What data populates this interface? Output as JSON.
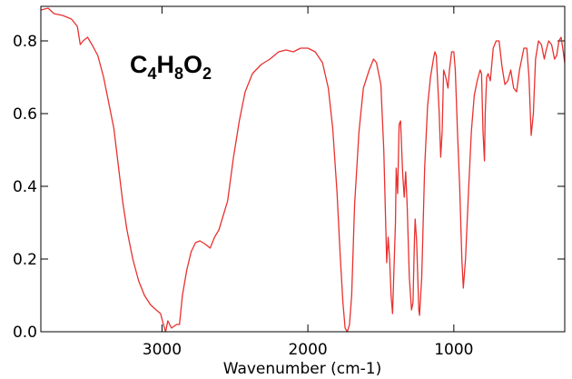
{
  "chart_data": {
    "type": "line",
    "xlabel": "Wavenumber (cm-1)",
    "annotation": [
      "C",
      "4",
      "H",
      "8",
      "O",
      "2"
    ],
    "xlim": [
      3830,
      240
    ],
    "xticks": [
      3000,
      2000,
      1000
    ],
    "ylim": [
      0,
      0.895
    ],
    "yticks": [
      {
        "value": 0,
        "label": "0.0"
      },
      0.2,
      0.4,
      0.6,
      0.8
    ],
    "x": [
      3830,
      3780,
      3740,
      3680,
      3620,
      3580,
      3560,
      3540,
      3510,
      3480,
      3440,
      3400,
      3360,
      3330,
      3300,
      3270,
      3240,
      3200,
      3160,
      3120,
      3080,
      3040,
      3010,
      2990,
      2975,
      2960,
      2935,
      2900,
      2880,
      2860,
      2830,
      2800,
      2770,
      2740,
      2700,
      2670,
      2640,
      2610,
      2580,
      2550,
      2510,
      2470,
      2430,
      2380,
      2320,
      2260,
      2200,
      2150,
      2100,
      2050,
      2000,
      1950,
      1900,
      1860,
      1830,
      1800,
      1780,
      1760,
      1745,
      1730,
      1715,
      1700,
      1680,
      1650,
      1620,
      1580,
      1550,
      1530,
      1500,
      1480,
      1460,
      1450,
      1440,
      1430,
      1420,
      1400,
      1395,
      1385,
      1375,
      1365,
      1350,
      1340,
      1330,
      1320,
      1305,
      1290,
      1280,
      1270,
      1265,
      1255,
      1240,
      1235,
      1220,
      1200,
      1180,
      1160,
      1140,
      1130,
      1120,
      1100,
      1090,
      1080,
      1070,
      1055,
      1040,
      1030,
      1015,
      1000,
      990,
      975,
      960,
      945,
      935,
      920,
      900,
      880,
      860,
      840,
      820,
      810,
      800,
      790,
      785,
      775,
      765,
      750,
      730,
      710,
      690,
      670,
      650,
      630,
      610,
      590,
      570,
      550,
      520,
      500,
      485,
      470,
      455,
      440,
      420,
      400,
      380,
      370,
      350,
      330,
      310,
      295,
      280,
      265,
      250,
      240
    ],
    "series": [
      {
        "color": "#e8312f",
        "values": [
          0.885,
          0.89,
          0.875,
          0.87,
          0.86,
          0.84,
          0.79,
          0.8,
          0.81,
          0.79,
          0.76,
          0.7,
          0.62,
          0.56,
          0.46,
          0.36,
          0.28,
          0.2,
          0.14,
          0.1,
          0.075,
          0.06,
          0.05,
          0.02,
          0.0,
          0.03,
          0.01,
          0.02,
          0.02,
          0.1,
          0.17,
          0.22,
          0.245,
          0.25,
          0.24,
          0.23,
          0.26,
          0.28,
          0.32,
          0.36,
          0.48,
          0.58,
          0.66,
          0.71,
          0.735,
          0.75,
          0.77,
          0.775,
          0.77,
          0.78,
          0.78,
          0.77,
          0.74,
          0.67,
          0.56,
          0.38,
          0.22,
          0.08,
          0.01,
          0.0,
          0.02,
          0.1,
          0.35,
          0.55,
          0.67,
          0.72,
          0.75,
          0.74,
          0.68,
          0.5,
          0.19,
          0.26,
          0.2,
          0.1,
          0.05,
          0.3,
          0.45,
          0.38,
          0.57,
          0.58,
          0.43,
          0.37,
          0.44,
          0.35,
          0.15,
          0.06,
          0.08,
          0.25,
          0.31,
          0.25,
          0.06,
          0.045,
          0.15,
          0.45,
          0.62,
          0.7,
          0.75,
          0.77,
          0.76,
          0.6,
          0.48,
          0.55,
          0.72,
          0.7,
          0.67,
          0.72,
          0.77,
          0.77,
          0.72,
          0.55,
          0.4,
          0.2,
          0.12,
          0.2,
          0.38,
          0.55,
          0.65,
          0.69,
          0.72,
          0.71,
          0.55,
          0.47,
          0.6,
          0.7,
          0.71,
          0.69,
          0.78,
          0.8,
          0.8,
          0.73,
          0.68,
          0.69,
          0.72,
          0.67,
          0.66,
          0.72,
          0.78,
          0.78,
          0.7,
          0.54,
          0.6,
          0.75,
          0.8,
          0.79,
          0.75,
          0.77,
          0.8,
          0.79,
          0.75,
          0.76,
          0.8,
          0.81,
          0.77,
          0.74
        ]
      }
    ]
  }
}
